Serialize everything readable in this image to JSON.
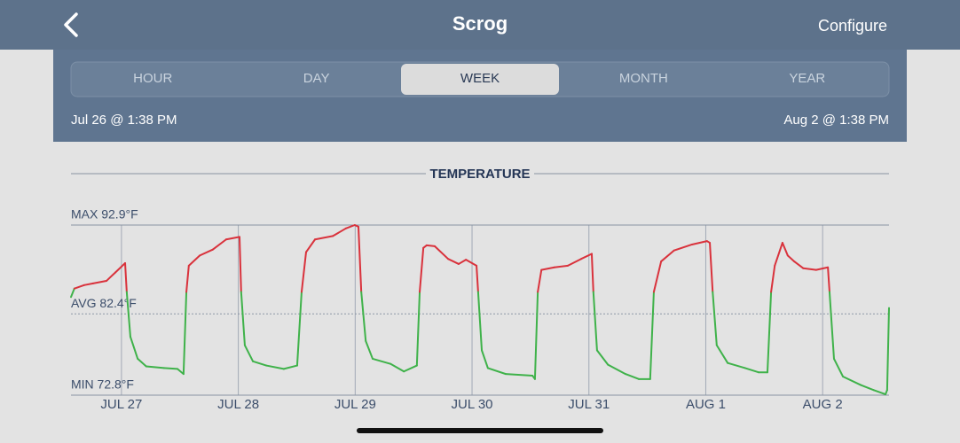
{
  "header": {
    "title": "Scrog",
    "action": "Configure"
  },
  "tabs": {
    "items": [
      "HOUR",
      "DAY",
      "WEEK",
      "MONTH",
      "YEAR"
    ],
    "selected": 2
  },
  "range": {
    "start": "Jul 26 @ 1:38 PM",
    "end": "Aug 2 @ 1:38 PM"
  },
  "chart_data": {
    "type": "line",
    "title": "TEMPERATURE",
    "x": [
      "Jul 26 13:38",
      "Jul 26 14:20",
      "Jul 26 16:20",
      "Jul 26 18:10",
      "Jul 26 20:55",
      "Jul 26 22:45",
      "Jul 27 00:45",
      "Jul 27 01:05",
      "Jul 27 01:50",
      "Jul 27 03:20",
      "Jul 27 05:05",
      "Jul 27 08:45",
      "Jul 27 11:30",
      "Jul 27 12:45",
      "Jul 27 13:20",
      "Jul 27 13:50",
      "Jul 27 16:05",
      "Jul 27 18:45",
      "Jul 27 21:30",
      "Jul 28 00:15",
      "Jul 28 00:35",
      "Jul 28 01:20",
      "Jul 28 03:00",
      "Jul 28 05:45",
      "Jul 28 09:20",
      "Jul 28 12:05",
      "Jul 28 13:00",
      "Jul 28 13:55",
      "Jul 28 15:45",
      "Jul 28 19:25",
      "Jul 28 22:05",
      "Jul 28 23:55",
      "Jul 29 00:40",
      "Jul 29 01:15",
      "Jul 29 02:10",
      "Jul 29 03:35",
      "Jul 29 07:15",
      "Jul 29 10:00",
      "Jul 29 12:40",
      "Jul 29 13:15",
      "Jul 29 14:00",
      "Jul 29 14:40",
      "Jul 29 16:20",
      "Jul 29 19:05",
      "Jul 29 21:15",
      "Jul 29 22:45",
      "Jul 30 00:55",
      "Jul 30 01:15",
      "Jul 30 02:00",
      "Jul 30 03:15",
      "Jul 30 06:55",
      "Jul 30 12:25",
      "Jul 30 12:55",
      "Jul 30 13:30",
      "Jul 30 14:15",
      "Jul 30 16:55",
      "Jul 30 19:40",
      "Jul 30 22:25",
      "Jul 31 00:35",
      "Jul 31 00:55",
      "Jul 31 01:40",
      "Jul 31 03:55",
      "Jul 31 07:30",
      "Jul 31 10:15",
      "Jul 31 12:35",
      "Jul 31 13:20",
      "Jul 31 14:50",
      "Jul 31 17:30",
      "Jul 31 21:10",
      "Aug 1 00:15",
      "Aug 1 00:50",
      "Aug 1 01:25",
      "Aug 1 02:15",
      "Aug 1 04:30",
      "Aug 1 08:05",
      "Aug 1 10:50",
      "Aug 1 12:40",
      "Aug 1 13:25",
      "Aug 1 14:10",
      "Aug 1 15:45",
      "Aug 1 16:50",
      "Aug 1 18:10",
      "Aug 1 20:00",
      "Aug 1 22:40",
      "Aug 2 01:05",
      "Aug 2 01:25",
      "Aug 2 02:20",
      "Aug 2 04:10",
      "Aug 2 07:50",
      "Aug 2 10:30",
      "Aug 2 12:55",
      "Aug 2 13:15",
      "Aug 2 13:38"
    ],
    "values": [
      84.4,
      85.4,
      85.8,
      86.0,
      86.3,
      87.3,
      88.4,
      85.0,
      79.7,
      77.1,
      76.2,
      76.0,
      75.9,
      75.3,
      85.0,
      88.1,
      89.3,
      90.0,
      91.2,
      91.5,
      85.0,
      78.7,
      76.8,
      76.3,
      75.9,
      76.3,
      85.0,
      89.7,
      91.2,
      91.6,
      92.5,
      92.9,
      92.7,
      85.0,
      79.2,
      77.1,
      76.5,
      75.6,
      76.3,
      85.0,
      90.2,
      90.5,
      90.4,
      88.9,
      88.3,
      88.8,
      88.1,
      85.0,
      78.1,
      76.0,
      75.3,
      75.1,
      74.7,
      85.0,
      87.6,
      87.9,
      88.1,
      88.9,
      89.5,
      85.0,
      78.1,
      76.4,
      75.3,
      74.7,
      74.7,
      85.0,
      88.6,
      89.9,
      90.6,
      91.0,
      90.8,
      85.0,
      78.7,
      76.6,
      76.0,
      75.5,
      75.5,
      85.0,
      88.1,
      90.8,
      89.3,
      88.6,
      87.8,
      87.6,
      87.9,
      85.0,
      77.1,
      75.0,
      74.0,
      73.4,
      72.9,
      73.4,
      83.1
    ],
    "color_above": "#d9323c",
    "color_below": "#3fb24a",
    "color_threshold": 85,
    "xlim": [
      "Jul 26 13:38",
      "Aug 2 13:38"
    ],
    "xticks": [
      {
        "value": "Jul 27 00:00",
        "label": "JUL 27"
      },
      {
        "value": "Jul 28 00:00",
        "label": "JUL 28"
      },
      {
        "value": "Jul 29 00:00",
        "label": "JUL 29"
      },
      {
        "value": "Jul 30 00:00",
        "label": "JUL 30"
      },
      {
        "value": "Jul 31 00:00",
        "label": "JUL 31"
      },
      {
        "value": "Aug 1 00:00",
        "label": "AUG 1"
      },
      {
        "value": "Aug 2 00:00",
        "label": "AUG 2"
      }
    ],
    "ylim": [
      72.8,
      92.9
    ],
    "yticks": [
      {
        "value": 92.9,
        "label": "MAX 92.9°F"
      },
      {
        "value": 82.4,
        "label": "AVG 82.4°F"
      },
      {
        "value": 72.8,
        "label": "MIN 72.8°F"
      }
    ],
    "grid": true
  }
}
